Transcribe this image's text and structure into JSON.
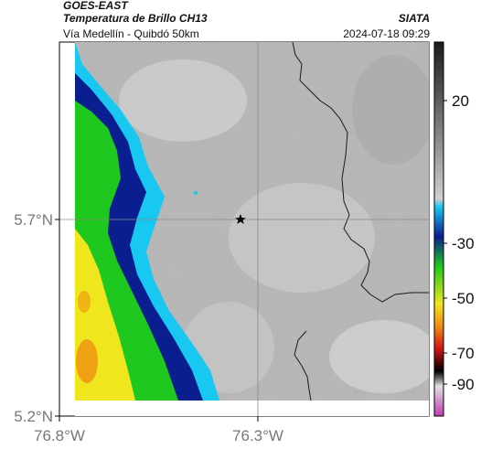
{
  "header": {
    "satellite": "GOES-EAST",
    "product": "Temperatura de Brillo CH13",
    "organization": "SIATA",
    "route": "Vía Medellín - Quibdó 50km",
    "datetime": "2024-07-18 09:29"
  },
  "map": {
    "lat_labels": [
      "5.7°N",
      "5.2°N"
    ],
    "lon_labels": [
      "76.8°W",
      "76.3°W"
    ],
    "marker": "star-marker"
  },
  "colorbar": {
    "tick_labels": [
      "20",
      "-30",
      "-50",
      "-70",
      "-90"
    ],
    "colors": {
      "warm_top": "#1a1a1a",
      "gray_mid": "#bdbdbd",
      "cyan": "#19c8f0",
      "blue": "#0a1e90",
      "green": "#1ec81e",
      "yellow": "#f0e61e",
      "orange": "#f08c14",
      "red": "#d21414",
      "black": "#000000",
      "magenta": "#c33cb4"
    }
  }
}
